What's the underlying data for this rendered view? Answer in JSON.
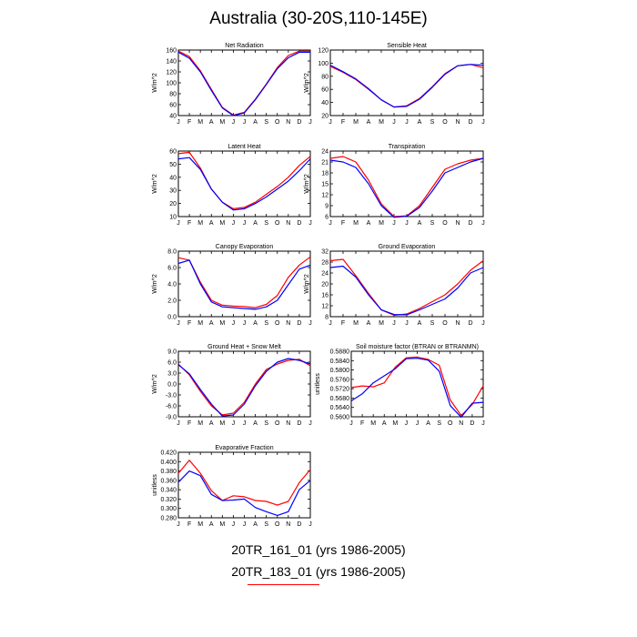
{
  "title": "Australia (30-20S,110-145E)",
  "months": [
    "J",
    "F",
    "M",
    "A",
    "M",
    "J",
    "J",
    "A",
    "S",
    "O",
    "N",
    "D",
    "J"
  ],
  "colors": {
    "run1": "#0000ff",
    "run2": "#ff0000",
    "axis": "#000000"
  },
  "legend": {
    "line1": "20TR_161_01 (yrs 1986-2005)",
    "line2": "20TR_183_01 (yrs 1986-2005)"
  },
  "chart_data": [
    {
      "type": "line",
      "title": "Net Radiation",
      "ylabel": "W/m^2",
      "ylim": [
        40,
        160
      ],
      "yticks": [
        "40",
        "60",
        "80",
        "100",
        "120",
        "140",
        "160"
      ],
      "series": [
        {
          "color": "#ff0000",
          "values": [
            158,
            148,
            122,
            88,
            55,
            41,
            46,
            70,
            98,
            128,
            150,
            158,
            158
          ]
        },
        {
          "color": "#0000ff",
          "values": [
            156,
            145,
            120,
            86,
            54,
            40,
            45,
            69,
            97,
            126,
            146,
            156,
            156
          ]
        }
      ]
    },
    {
      "type": "line",
      "title": "Sensible Heat",
      "ylabel": "W/m^2",
      "ylim": [
        20,
        120
      ],
      "yticks": [
        "20",
        "40",
        "60",
        "80",
        "100",
        "120"
      ],
      "series": [
        {
          "color": "#ff0000",
          "values": [
            95,
            86,
            75,
            60,
            44,
            33,
            35,
            46,
            64,
            84,
            96,
            98,
            93
          ]
        },
        {
          "color": "#0000ff",
          "values": [
            97,
            87,
            76,
            61,
            44,
            33,
            34,
            45,
            63,
            83,
            96,
            98,
            97
          ]
        }
      ]
    },
    {
      "type": "line",
      "title": "Latent Heat",
      "ylabel": "W/m^2",
      "ylim": [
        10,
        60
      ],
      "yticks": [
        "10",
        "20",
        "30",
        "40",
        "50",
        "60"
      ],
      "series": [
        {
          "color": "#ff0000",
          "values": [
            58,
            59,
            47,
            31,
            21,
            16,
            17,
            21,
            27,
            33,
            40,
            49,
            56
          ]
        },
        {
          "color": "#0000ff",
          "values": [
            54,
            55,
            46,
            31,
            21,
            15,
            16,
            20,
            25,
            31,
            37,
            45,
            54
          ]
        }
      ]
    },
    {
      "type": "line",
      "title": "Transpiration",
      "ylabel": "W/m^2",
      "ylim": [
        6,
        24
      ],
      "yticks": [
        "6",
        "9",
        "12",
        "15",
        "18",
        "21",
        "24"
      ],
      "series": [
        {
          "color": "#ff0000",
          "values": [
            22,
            22.5,
            21,
            16,
            9.5,
            6,
            6.2,
            9,
            14,
            19,
            20.5,
            21.5,
            22
          ]
        },
        {
          "color": "#0000ff",
          "values": [
            21.5,
            21,
            19.5,
            15,
            9,
            5.8,
            6.1,
            8.5,
            13,
            18,
            19.5,
            21,
            22
          ]
        }
      ]
    },
    {
      "type": "line",
      "title": "Canopy Evaporation",
      "ylabel": "W/m^2",
      "ylim": [
        0,
        8
      ],
      "yticks": [
        "0.0",
        "2.0",
        "4.0",
        "6.0",
        "8.0"
      ],
      "series": [
        {
          "color": "#ff0000",
          "values": [
            7.2,
            6.9,
            4.2,
            2.0,
            1.4,
            1.3,
            1.25,
            1.1,
            1.5,
            2.6,
            4.8,
            6.3,
            7.3
          ]
        },
        {
          "color": "#0000ff",
          "values": [
            6.5,
            6.9,
            4.0,
            1.8,
            1.2,
            1.1,
            1.0,
            0.9,
            1.2,
            2.0,
            3.9,
            5.8,
            6.3
          ]
        }
      ]
    },
    {
      "type": "line",
      "title": "Ground Evaporation",
      "ylabel": "W/m^2",
      "ylim": [
        8,
        32
      ],
      "yticks": [
        "8",
        "12",
        "16",
        "20",
        "24",
        "28",
        "32"
      ],
      "series": [
        {
          "color": "#ff0000",
          "values": [
            28.5,
            29,
            23,
            16.5,
            10.5,
            8.5,
            9,
            11,
            13.5,
            16,
            20,
            25,
            28.5
          ]
        },
        {
          "color": "#0000ff",
          "values": [
            26,
            26.5,
            22.5,
            16,
            10.5,
            8.8,
            8.7,
            10.5,
            12.5,
            14.5,
            18.5,
            24,
            26
          ]
        }
      ]
    },
    {
      "type": "line",
      "title": "Ground Heat + Snow Melt",
      "ylabel": "W/m^2",
      "ylim": [
        -9,
        9
      ],
      "yticks": [
        "-9.0",
        "-6.0",
        "-3.0",
        "0.0",
        "3.0",
        "6.0",
        "9.0"
      ],
      "series": [
        {
          "color": "#ff0000",
          "values": [
            5.5,
            2.5,
            -2.0,
            -6.0,
            -8.5,
            -8.0,
            -5.0,
            0,
            4.0,
            5.5,
            6.5,
            6.8,
            5.0
          ]
        },
        {
          "color": "#0000ff",
          "values": [
            5.3,
            2.8,
            -1.5,
            -5.5,
            -8.8,
            -8.5,
            -5.5,
            -0.5,
            3.5,
            6.0,
            7.0,
            6.5,
            5.5
          ]
        }
      ]
    },
    {
      "type": "line",
      "title": "Soil moisture factor (BTRAN or BTRANMN)",
      "ylabel": "unitless",
      "ylim": [
        0.56,
        0.588
      ],
      "yticks": [
        "0.5600",
        "0.5640",
        "0.5680",
        "0.5720",
        "0.5760",
        "0.5800",
        "0.5840",
        "0.5880"
      ],
      "series": [
        {
          "color": "#ff0000",
          "values": [
            0.5725,
            0.5732,
            0.5728,
            0.5745,
            0.5812,
            0.5852,
            0.5855,
            0.5845,
            0.582,
            0.5672,
            0.5605,
            0.5652,
            0.5732
          ]
        },
        {
          "color": "#0000ff",
          "values": [
            0.5668,
            0.5698,
            0.5745,
            0.5775,
            0.5805,
            0.5848,
            0.585,
            0.5842,
            0.5795,
            0.5648,
            0.5598,
            0.5658,
            0.5662
          ]
        }
      ]
    },
    {
      "type": "line",
      "title": "Evaporative Fraction",
      "ylabel": "unitless",
      "ylim": [
        0.28,
        0.42
      ],
      "yticks": [
        "0.280",
        "0.300",
        "0.320",
        "0.340",
        "0.360",
        "0.380",
        "0.400",
        "0.420"
      ],
      "series": [
        {
          "color": "#ff0000",
          "values": [
            0.375,
            0.403,
            0.375,
            0.338,
            0.317,
            0.327,
            0.325,
            0.317,
            0.315,
            0.307,
            0.315,
            0.355,
            0.383
          ]
        },
        {
          "color": "#0000ff",
          "values": [
            0.356,
            0.38,
            0.37,
            0.33,
            0.317,
            0.318,
            0.32,
            0.302,
            0.293,
            0.285,
            0.293,
            0.34,
            0.36
          ]
        }
      ]
    }
  ]
}
